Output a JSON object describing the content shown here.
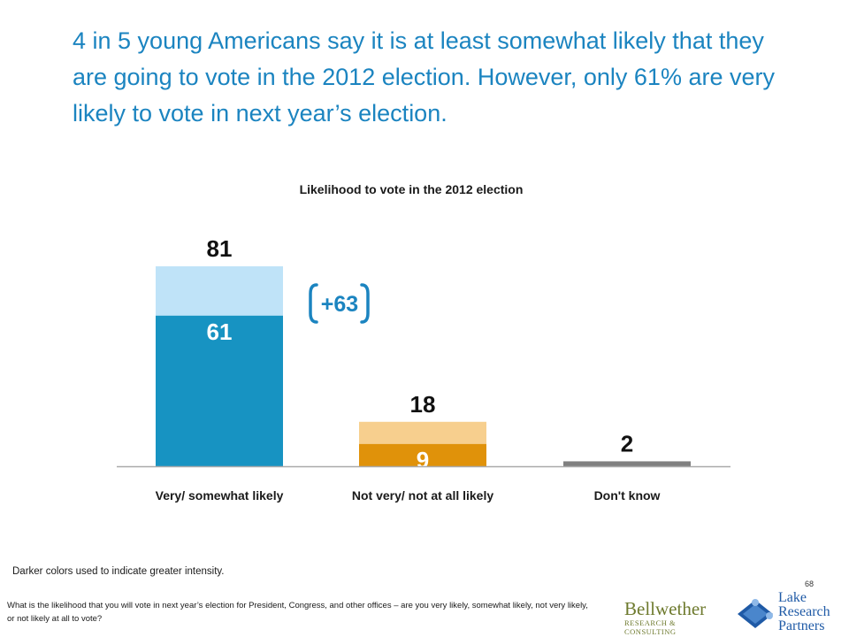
{
  "headline": "4 in 5 young Americans say it is at least somewhat likely that they are going to vote in the 2012 election. However, only 61% are very likely to vote in next year’s election.",
  "chart_data": {
    "type": "bar",
    "title": "Likelihood to vote in the 2012 election",
    "categories": [
      "Very/ somewhat likely",
      "Not very/ not at all likely",
      "Don't know"
    ],
    "totals": [
      81,
      18,
      2
    ],
    "intense_values": [
      61,
      9,
      null
    ],
    "difference_callout": "+63",
    "colors": {
      "likely_total": "#bfe3f8",
      "likely_intense": "#1793c2",
      "unlikely_total": "#f7cf8e",
      "unlikely_intense": "#e0920a",
      "dont_know": "#808080",
      "callout": "#1b84c0"
    },
    "ylim": [
      0,
      90
    ],
    "grid": false
  },
  "note": "Darker colors used to indicate greater intensity.",
  "page_number": "68",
  "question": "What is the likelihood that you will vote in next year’s election for President, Congress, and other offices – are you very likely, somewhat likely, not very likely, or not likely at all to vote?",
  "logos": {
    "bellwether": {
      "name": "Bellwether",
      "subtitle": "RESEARCH & CONSULTING"
    },
    "lake": {
      "line1": "Lake",
      "line2": "Research",
      "line3": "Partners"
    }
  }
}
